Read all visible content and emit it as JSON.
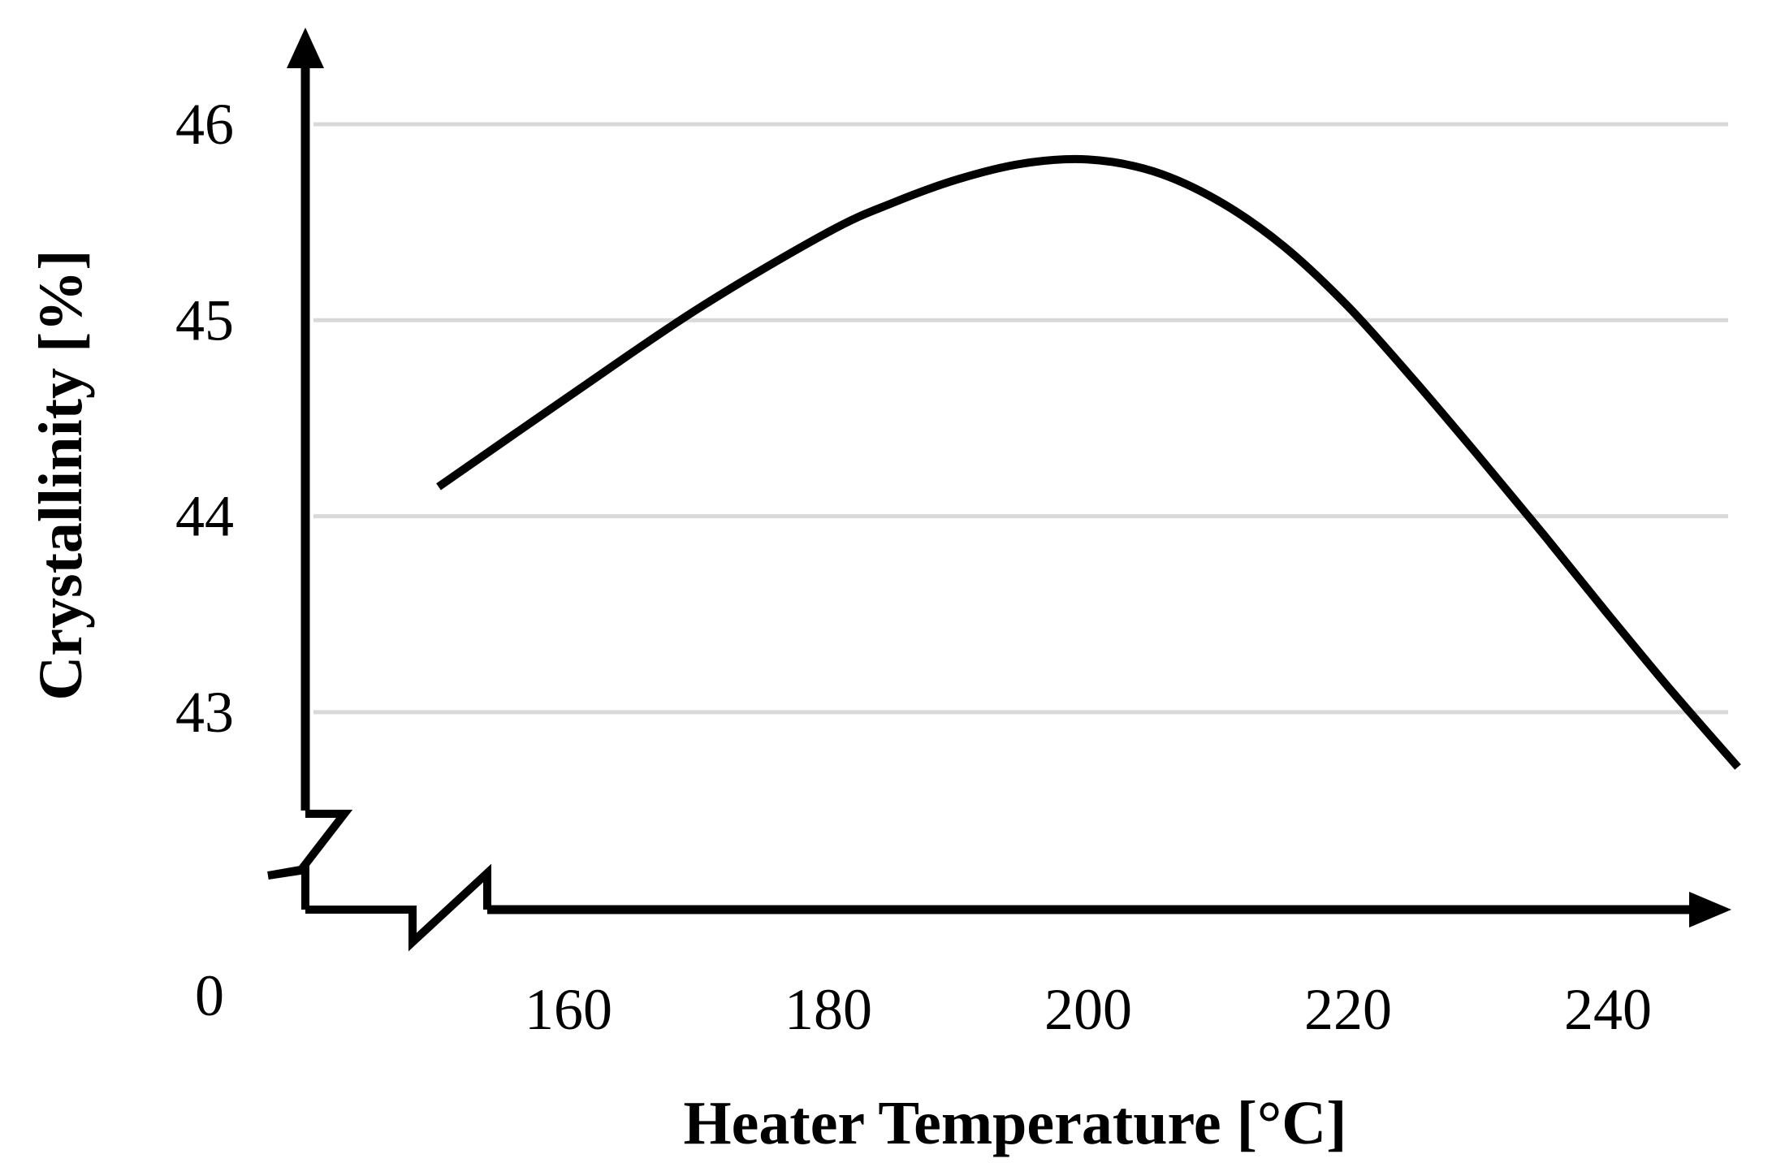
{
  "chart_data": {
    "type": "line",
    "xlabel": "Heater Temperature [°C]",
    "ylabel": "Crystallinity [%]",
    "x_ticks": [
      "160",
      "180",
      "200",
      "220",
      "240"
    ],
    "y_ticks": [
      "43",
      "44",
      "45",
      "46"
    ],
    "origin_label": "0",
    "xlim": [
      142,
      250
    ],
    "ylim": [
      42.8,
      46.5
    ],
    "axis_breaks": [
      "x",
      "y"
    ],
    "grid": "horizontal",
    "series": [
      {
        "x": [
          150,
          160,
          170,
          180,
          185,
          190,
          195,
          200,
          205,
          210,
          215,
          220,
          225,
          230,
          235,
          240,
          245,
          250
        ],
        "y": [
          44.15,
          44.61,
          45.06,
          45.45,
          45.6,
          45.72,
          45.8,
          45.82,
          45.76,
          45.61,
          45.38,
          45.07,
          44.7,
          44.31,
          43.91,
          43.5,
          43.1,
          42.72
        ]
      }
    ],
    "colors": {
      "line": "#000000",
      "axis": "#000000",
      "grid": "#d9d9d9"
    }
  }
}
